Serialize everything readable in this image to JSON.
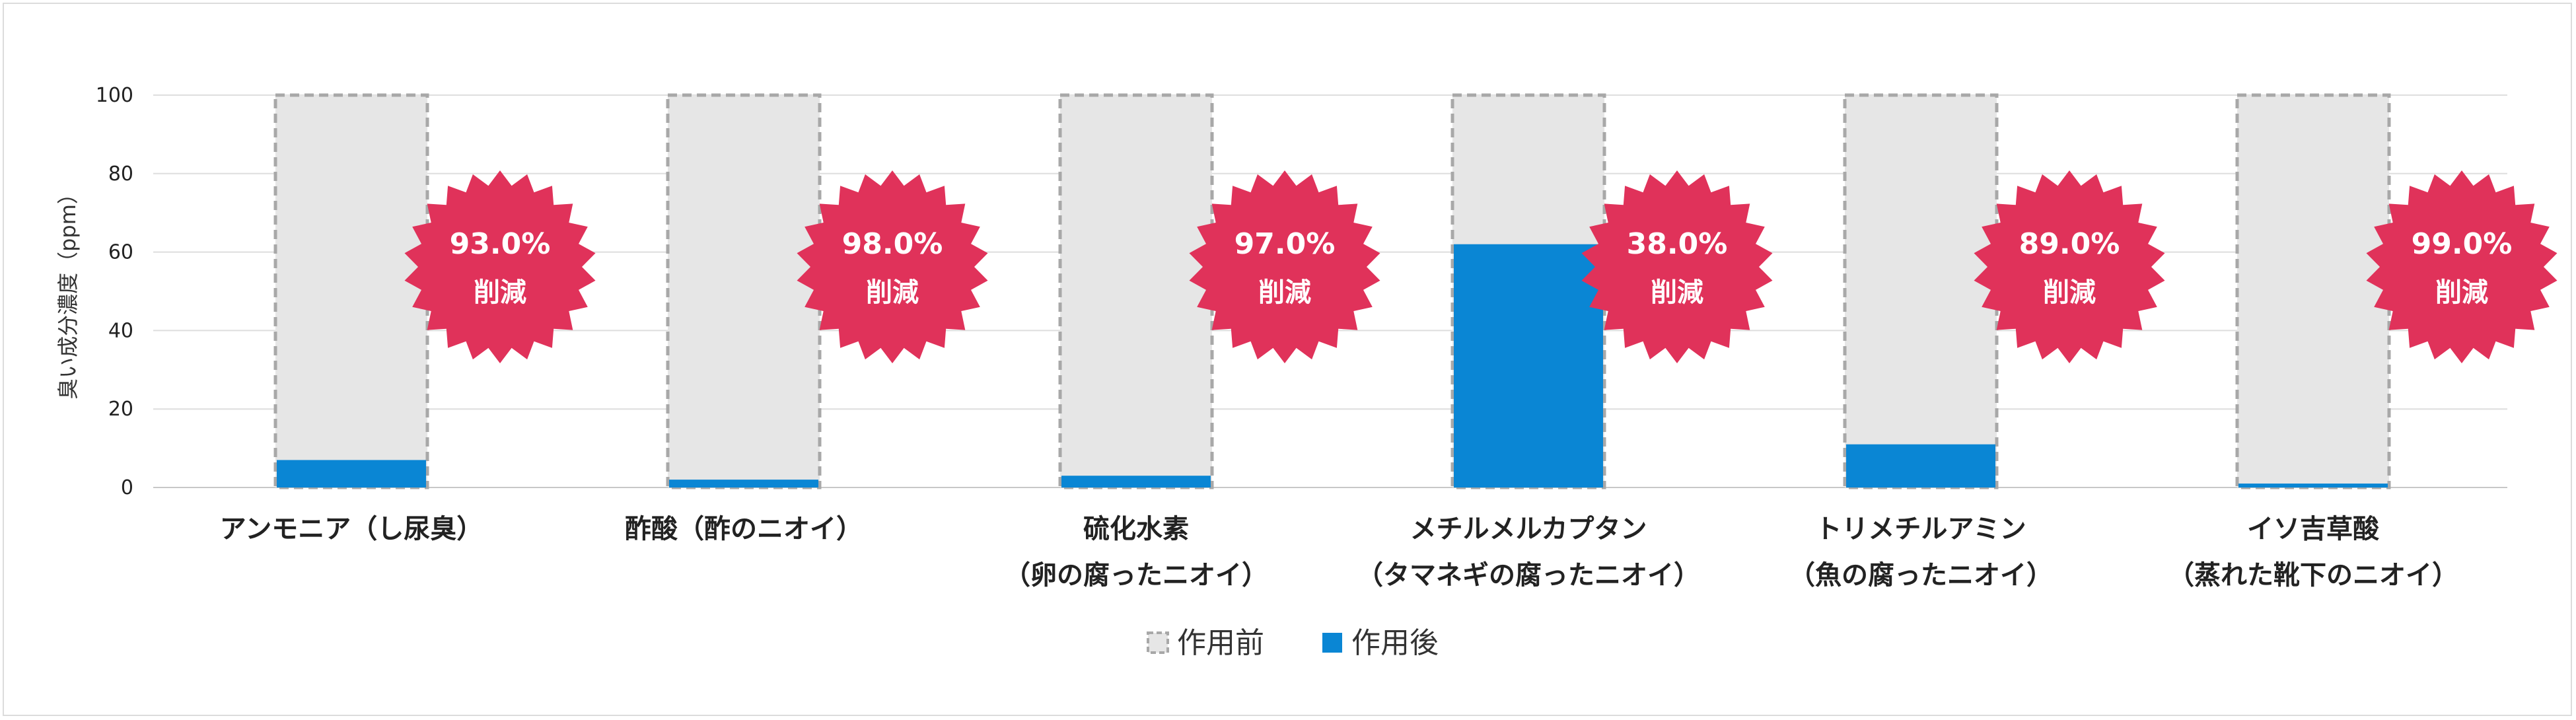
{
  "chart_data": {
    "type": "bar",
    "ylabel": "臭い成分濃度（ppm）",
    "ylim": [
      0,
      100
    ],
    "yticks": [
      0,
      20,
      40,
      60,
      80,
      100
    ],
    "grid": true,
    "legend_position": "bottom",
    "categories": [
      [
        "アンモニア（し尿臭）"
      ],
      [
        "酢酸（酢のニオイ）"
      ],
      [
        "硫化水素",
        "（卵の腐ったニオイ）"
      ],
      [
        "メチルメルカプタン",
        "（タマネギの腐ったニオイ）"
      ],
      [
        "トリメチルアミン",
        "（魚の腐ったニオイ）"
      ],
      [
        "イソ吉草酸",
        "（蒸れた靴下のニオイ）"
      ]
    ],
    "series": [
      {
        "name": "作用前",
        "values": [
          100,
          100,
          100,
          100,
          100,
          100
        ],
        "color": "#e6e6e6",
        "border": "#a8a8a8"
      },
      {
        "name": "作用後",
        "values": [
          7,
          2,
          3,
          62,
          11,
          1
        ],
        "color": "#0a86d4"
      }
    ],
    "annotations": [
      {
        "percent": "93.0%",
        "text": "削減"
      },
      {
        "percent": "98.0%",
        "text": "削減"
      },
      {
        "percent": "97.0%",
        "text": "削減"
      },
      {
        "percent": "38.0%",
        "text": "削減"
      },
      {
        "percent": "89.0%",
        "text": "削減"
      },
      {
        "percent": "99.0%",
        "text": "削減"
      }
    ],
    "badge_color": "#e0325a"
  }
}
